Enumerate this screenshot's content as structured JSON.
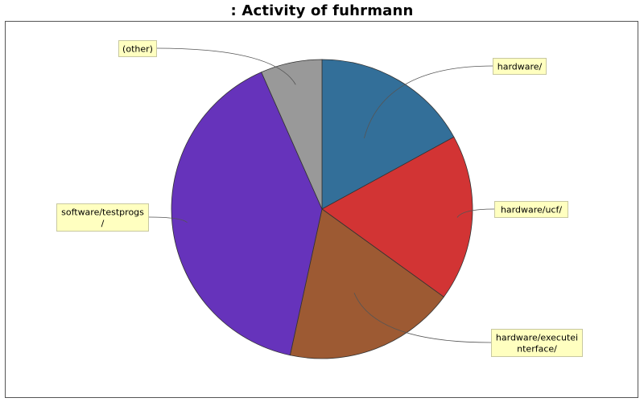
{
  "chart_data": {
    "type": "pie",
    "title": ": Activity of fuhrmann",
    "slices": [
      {
        "label": "hardware/",
        "label_lines": [
          "hardware/"
        ],
        "value": 17.0,
        "color": "#336f99"
      },
      {
        "label": "hardware/ucf/",
        "label_lines": [
          "hardware/ucf/"
        ],
        "value": 18.0,
        "color": "#d23434"
      },
      {
        "label": "hardware/executeinterface/",
        "label_lines": [
          "hardware/executei",
          "nterface/"
        ],
        "value": 18.4,
        "color": "#9d5a33"
      },
      {
        "label": "software/testprogs/",
        "label_lines": [
          "software/testprogs",
          "/"
        ],
        "value": 40.0,
        "color": "#6633bb"
      },
      {
        "label": "(other)",
        "label_lines": [
          "(other)"
        ],
        "value": 6.6,
        "color": "#999999"
      }
    ],
    "legend": "none",
    "grid": false
  }
}
